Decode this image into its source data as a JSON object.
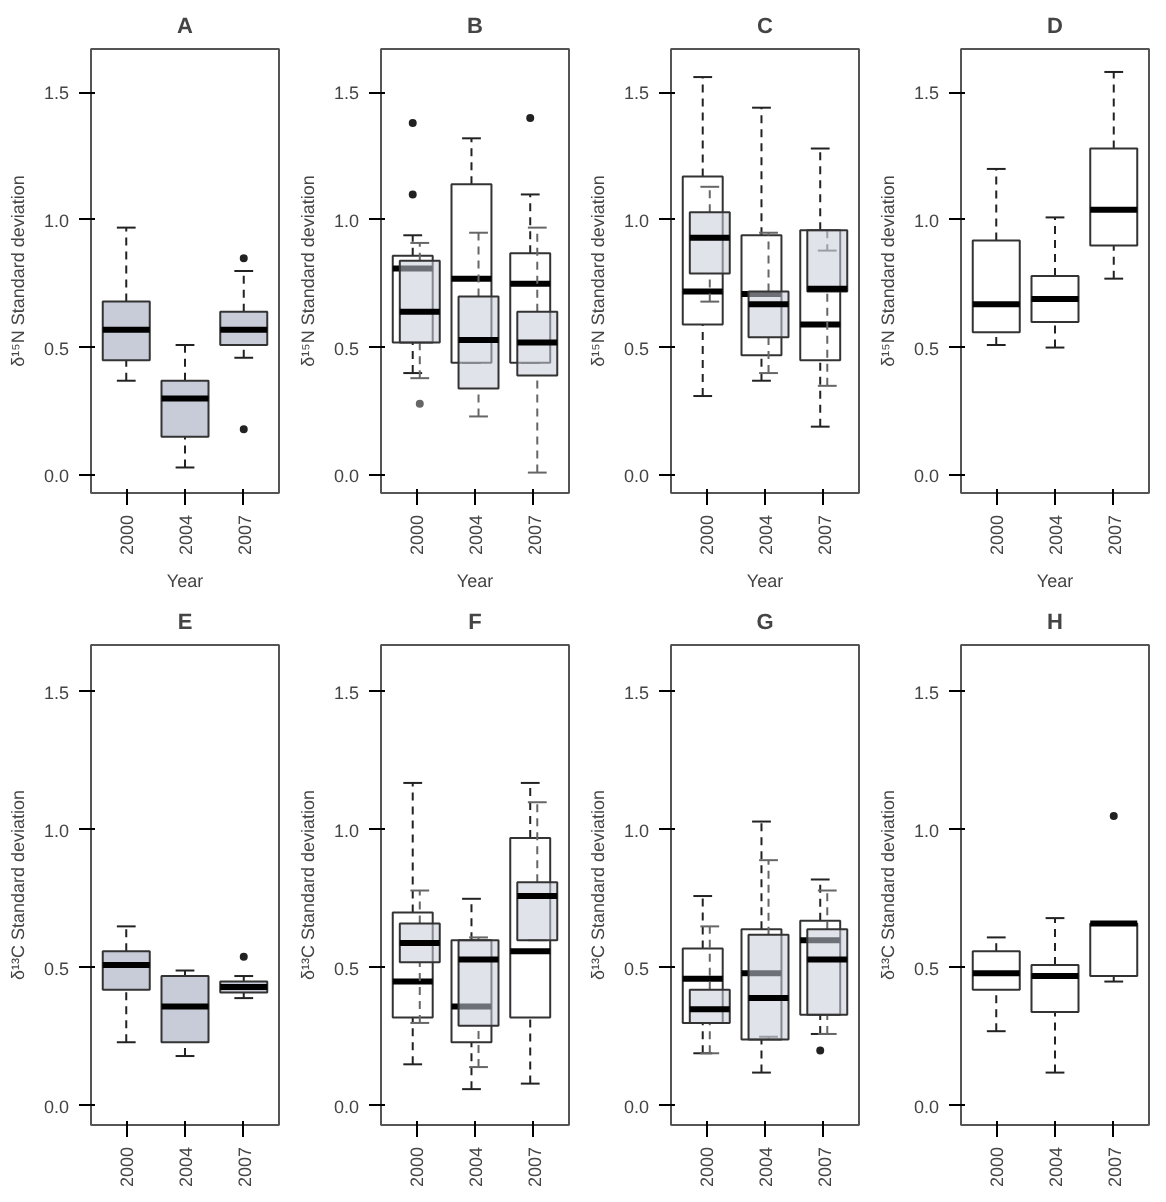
{
  "chart_data": [
    {
      "type": "box",
      "title": "A",
      "xlabel": "Year",
      "ylabel": "δ¹⁵N Standard deviation",
      "categories": [
        "2000",
        "2004",
        "2007"
      ],
      "ylim": [
        -0.07,
        1.67
      ],
      "yticks": [
        {
          "value": 0,
          "label": "0.0"
        },
        {
          "value": 0.5,
          "label": "0.5"
        },
        {
          "value": 1,
          "label": "1.0"
        },
        {
          "value": 1.5,
          "label": "1.5"
        }
      ],
      "series": [
        {
          "color": "#c8ccd8",
          "boxes": [
            {
              "low": 0.37,
              "q1": 0.45,
              "median": 0.57,
              "q3": 0.68,
              "high": 0.97
            },
            {
              "low": 0.03,
              "q1": 0.15,
              "median": 0.3,
              "q3": 0.37,
              "high": 0.51
            },
            {
              "low": 0.46,
              "q1": 0.51,
              "median": 0.57,
              "q3": 0.64,
              "high": 0.8,
              "outliers": [
                0.85,
                0.18
              ]
            }
          ]
        }
      ]
    },
    {
      "type": "box",
      "title": "B",
      "xlabel": "Year",
      "ylabel": "δ¹⁵N Standard deviation",
      "categories": [
        "2000",
        "2004",
        "2007"
      ],
      "ylim": [
        -0.07,
        1.67
      ],
      "yticks": [
        {
          "value": 0,
          "label": "0.0"
        },
        {
          "value": 0.5,
          "label": "0.5"
        },
        {
          "value": 1,
          "label": "1.0"
        },
        {
          "value": 1.5,
          "label": "1.5"
        }
      ],
      "series": [
        {
          "color": "#ffffff",
          "boxes": [
            {
              "low": 0.4,
              "q1": 0.52,
              "median": 0.81,
              "q3": 0.86,
              "high": 0.94,
              "outliers": [
                1.38,
                1.1
              ]
            },
            {
              "low": 0.44,
              "q1": 0.44,
              "median": 0.77,
              "q3": 1.14,
              "high": 1.32
            },
            {
              "low": 0.44,
              "q1": 0.44,
              "median": 0.75,
              "q3": 0.87,
              "high": 1.1,
              "outliers": [
                1.4
              ]
            }
          ]
        },
        {
          "color": "#c8ccd8",
          "boxes": [
            {
              "low": 0.38,
              "q1": 0.52,
              "median": 0.64,
              "q3": 0.84,
              "high": 0.91,
              "outliers": [
                0.28
              ]
            },
            {
              "low": 0.23,
              "q1": 0.34,
              "median": 0.53,
              "q3": 0.7,
              "high": 0.95
            },
            {
              "low": 0.01,
              "q1": 0.39,
              "median": 0.52,
              "q3": 0.64,
              "high": 0.97
            }
          ]
        }
      ]
    },
    {
      "type": "box",
      "title": "C",
      "xlabel": "Year",
      "ylabel": "δ¹⁵N Standard deviation",
      "categories": [
        "2000",
        "2004",
        "2007"
      ],
      "ylim": [
        -0.07,
        1.67
      ],
      "yticks": [
        {
          "value": 0,
          "label": "0.0"
        },
        {
          "value": 0.5,
          "label": "0.5"
        },
        {
          "value": 1,
          "label": "1.0"
        },
        {
          "value": 1.5,
          "label": "1.5"
        }
      ],
      "series": [
        {
          "color": "#ffffff",
          "boxes": [
            {
              "low": 0.31,
              "q1": 0.59,
              "median": 0.72,
              "q3": 1.17,
              "high": 1.56
            },
            {
              "low": 0.37,
              "q1": 0.47,
              "median": 0.71,
              "q3": 0.94,
              "high": 1.44
            },
            {
              "low": 0.19,
              "q1": 0.45,
              "median": 0.59,
              "q3": 0.96,
              "high": 1.28
            }
          ]
        },
        {
          "color": "#c8ccd8",
          "boxes": [
            {
              "low": 0.68,
              "q1": 0.79,
              "median": 0.93,
              "q3": 1.03,
              "high": 1.13
            },
            {
              "low": 0.4,
              "q1": 0.54,
              "median": 0.67,
              "q3": 0.72,
              "high": 0.95
            },
            {
              "low": 0.35,
              "q1": 0.72,
              "median": 0.73,
              "q3": 0.96,
              "high": 0.88
            }
          ]
        }
      ]
    },
    {
      "type": "box",
      "title": "D",
      "xlabel": "Year",
      "ylabel": "δ¹⁵N Standard deviation",
      "categories": [
        "2000",
        "2004",
        "2007"
      ],
      "ylim": [
        -0.07,
        1.67
      ],
      "yticks": [
        {
          "value": 0,
          "label": "0.0"
        },
        {
          "value": 0.5,
          "label": "0.5"
        },
        {
          "value": 1,
          "label": "1.0"
        },
        {
          "value": 1.5,
          "label": "1.5"
        }
      ],
      "series": [
        {
          "color": "#ffffff",
          "boxes": [
            {
              "low": 0.51,
              "q1": 0.56,
              "median": 0.67,
              "q3": 0.92,
              "high": 1.2
            },
            {
              "low": 0.5,
              "q1": 0.6,
              "median": 0.69,
              "q3": 0.78,
              "high": 1.01
            },
            {
              "low": 0.77,
              "q1": 0.9,
              "median": 1.04,
              "q3": 1.28,
              "high": 1.58
            }
          ]
        }
      ]
    },
    {
      "type": "box",
      "title": "E",
      "ylabel": "δ¹³C Standard deviation",
      "categories": [
        "2000",
        "2004",
        "2007"
      ],
      "ylim": [
        -0.07,
        1.67
      ],
      "yticks": [
        {
          "value": 0,
          "label": "0.0"
        },
        {
          "value": 0.5,
          "label": "0.5"
        },
        {
          "value": 1,
          "label": "1.0"
        },
        {
          "value": 1.5,
          "label": "1.5"
        }
      ],
      "series": [
        {
          "color": "#c8ccd8",
          "boxes": [
            {
              "low": 0.23,
              "q1": 0.42,
              "median": 0.51,
              "q3": 0.56,
              "high": 0.65
            },
            {
              "low": 0.18,
              "q1": 0.23,
              "median": 0.36,
              "q3": 0.47,
              "high": 0.49
            },
            {
              "low": 0.39,
              "q1": 0.41,
              "median": 0.43,
              "q3": 0.45,
              "high": 0.47,
              "outliers": [
                0.54
              ]
            }
          ]
        }
      ]
    },
    {
      "type": "box",
      "title": "F",
      "ylabel": "δ¹³C Standard deviation",
      "categories": [
        "2000",
        "2004",
        "2007"
      ],
      "ylim": [
        -0.07,
        1.67
      ],
      "yticks": [
        {
          "value": 0,
          "label": "0.0"
        },
        {
          "value": 0.5,
          "label": "0.5"
        },
        {
          "value": 1,
          "label": "1.0"
        },
        {
          "value": 1.5,
          "label": "1.5"
        }
      ],
      "series": [
        {
          "color": "#ffffff",
          "boxes": [
            {
              "low": 0.15,
              "q1": 0.32,
              "median": 0.45,
              "q3": 0.7,
              "high": 1.17
            },
            {
              "low": 0.06,
              "q1": 0.23,
              "median": 0.36,
              "q3": 0.6,
              "high": 0.75
            },
            {
              "low": 0.08,
              "q1": 0.32,
              "median": 0.56,
              "q3": 0.97,
              "high": 1.17
            }
          ]
        },
        {
          "color": "#c8ccd8",
          "boxes": [
            {
              "low": 0.3,
              "q1": 0.52,
              "median": 0.59,
              "q3": 0.66,
              "high": 0.78
            },
            {
              "low": 0.14,
              "q1": 0.29,
              "median": 0.53,
              "q3": 0.6,
              "high": 0.61
            },
            {
              "low": 0.6,
              "q1": 0.6,
              "median": 0.76,
              "q3": 0.81,
              "high": 1.1
            }
          ]
        }
      ]
    },
    {
      "type": "box",
      "title": "G",
      "ylabel": "δ¹³C Standard deviation",
      "categories": [
        "2000",
        "2004",
        "2007"
      ],
      "ylim": [
        -0.07,
        1.67
      ],
      "yticks": [
        {
          "value": 0,
          "label": "0.0"
        },
        {
          "value": 0.5,
          "label": "0.5"
        },
        {
          "value": 1,
          "label": "1.0"
        },
        {
          "value": 1.5,
          "label": "1.5"
        }
      ],
      "series": [
        {
          "color": "#ffffff",
          "boxes": [
            {
              "low": 0.19,
              "q1": 0.3,
              "median": 0.46,
              "q3": 0.57,
              "high": 0.76
            },
            {
              "low": 0.12,
              "q1": 0.24,
              "median": 0.48,
              "q3": 0.64,
              "high": 1.03
            },
            {
              "low": 0.26,
              "q1": 0.33,
              "median": 0.6,
              "q3": 0.67,
              "high": 0.82,
              "outliers": [
                0.2
              ]
            }
          ]
        },
        {
          "color": "#c8ccd8",
          "boxes": [
            {
              "low": 0.19,
              "q1": 0.3,
              "median": 0.35,
              "q3": 0.42,
              "high": 0.65
            },
            {
              "low": 0.25,
              "q1": 0.24,
              "median": 0.39,
              "q3": 0.62,
              "high": 0.89
            },
            {
              "low": 0.26,
              "q1": 0.33,
              "median": 0.53,
              "q3": 0.64,
              "high": 0.78
            }
          ]
        }
      ]
    },
    {
      "type": "box",
      "title": "H",
      "ylabel": "δ¹³C Standard deviation",
      "categories": [
        "2000",
        "2004",
        "2007"
      ],
      "ylim": [
        -0.07,
        1.67
      ],
      "yticks": [
        {
          "value": 0,
          "label": "0.0"
        },
        {
          "value": 0.5,
          "label": "0.5"
        },
        {
          "value": 1,
          "label": "1.0"
        },
        {
          "value": 1.5,
          "label": "1.5"
        }
      ],
      "series": [
        {
          "color": "#ffffff",
          "boxes": [
            {
              "low": 0.27,
              "q1": 0.42,
              "median": 0.48,
              "q3": 0.56,
              "high": 0.61
            },
            {
              "low": 0.12,
              "q1": 0.34,
              "median": 0.47,
              "q3": 0.51,
              "high": 0.68
            },
            {
              "low": 0.45,
              "q1": 0.47,
              "median": 0.66,
              "q3": 0.66,
              "high": 0.66,
              "outliers": [
                1.05
              ]
            }
          ]
        }
      ]
    }
  ]
}
